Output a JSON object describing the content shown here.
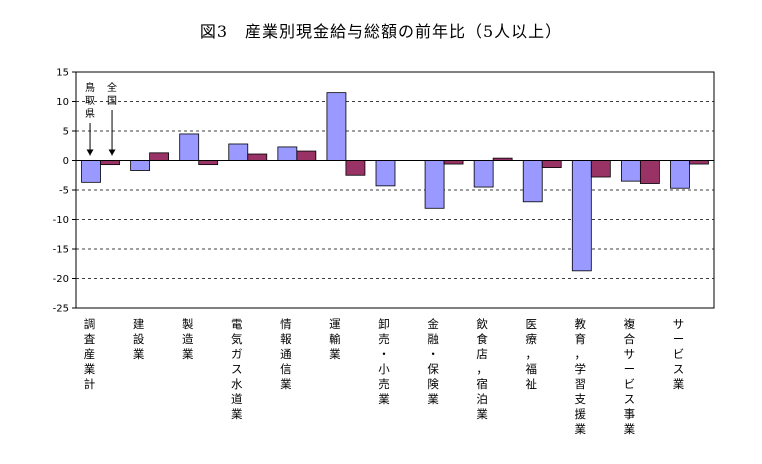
{
  "chart_data": {
    "type": "bar",
    "title": "図3　産業別現金給与総額の前年比（5人以上）",
    "categories": [
      "調査産業計",
      "建設業",
      "製造業",
      "電気ガス水道業",
      "情報通信業",
      "運輸業",
      "卸売・小売業",
      "金融・保険業",
      "飲食店，宿泊業",
      "医療，福祉",
      "教育，学習支援業",
      "複合サービス事業",
      "サービス業"
    ],
    "series": [
      {
        "name": "鳥取県",
        "color": "#9999ff",
        "values": [
          -3.7,
          -1.7,
          4.5,
          2.8,
          2.3,
          11.5,
          -4.3,
          -8.1,
          -4.5,
          -7.0,
          -18.7,
          -3.5,
          -4.7
        ]
      },
      {
        "name": "全国",
        "color": "#993366",
        "values": [
          -0.7,
          1.3,
          -0.7,
          1.1,
          1.6,
          -2.5,
          0.0,
          -0.6,
          0.4,
          -1.2,
          -2.8,
          -3.9,
          -0.6
        ]
      }
    ],
    "ylim": [
      -25,
      15
    ],
    "yticks": [
      15,
      10,
      5,
      0,
      -5,
      -10,
      -15,
      -20,
      -25
    ],
    "grid": "dashed horizontal",
    "annotations": [
      {
        "text": "鳥取県",
        "series": 0
      },
      {
        "text": "全国",
        "series": 1
      }
    ]
  }
}
